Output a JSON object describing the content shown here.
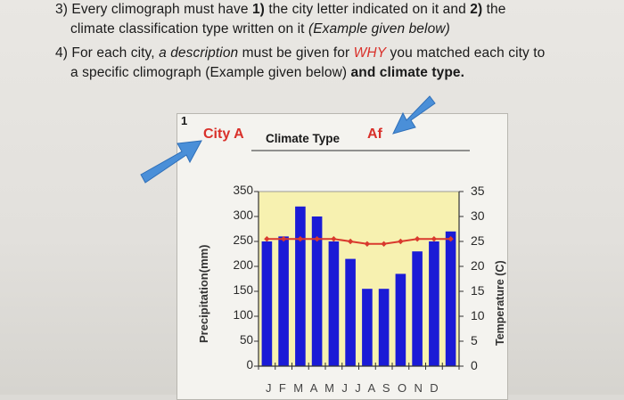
{
  "instructions": {
    "item3_prefix": "3) Every climograph must have ",
    "item3_bold1": "1)",
    "item3_mid1": " the city letter indicated on it and ",
    "item3_bold2": "2)",
    "item3_mid2": " the",
    "item3_line2_plain": "climate classification type written on it ",
    "item3_line2_italic": "(Example given below)",
    "item4_prefix": "4) For each city, ",
    "item4_italic": "a description",
    "item4_mid": " must be given for ",
    "item4_why": "WHY",
    "item4_end": " you matched each city to",
    "item4_line2_plain": "a specific climograph (Example given below) ",
    "item4_line2_bold": "and climate type."
  },
  "example": {
    "number": "1",
    "city": "City A",
    "climate_type_label": "Climate Type",
    "climate_type_value": "Af"
  },
  "colors": {
    "bar": "#1b1bd6",
    "temp_line": "#d93a2e",
    "plot_bg": "#f7f1b0",
    "arrow": "#4a8fd8",
    "accent_red": "#d9302a"
  },
  "chart_data": {
    "type": "bar",
    "ylabel": "Precipitation(mm)",
    "y2label": "Temperature (C)",
    "categories": [
      "J",
      "F",
      "M",
      "A",
      "M",
      "J",
      "J",
      "A",
      "S",
      "O",
      "N",
      "D"
    ],
    "x_tick_text": "J F M A M J J A S O N D",
    "ylim": [
      0,
      350
    ],
    "y_ticks": [
      "350",
      "300",
      "250",
      "200",
      "150",
      "100",
      "50",
      "0"
    ],
    "y2lim": [
      0,
      35
    ],
    "y2_ticks": [
      "35",
      "30",
      "25",
      "20",
      "15",
      "10",
      "5",
      "0"
    ],
    "series": [
      {
        "values": [
          250,
          260,
          320,
          300,
          250,
          215,
          155,
          155,
          185,
          230,
          250,
          270
        ]
      },
      {
        "values": [
          25.5,
          25.5,
          25.5,
          25.5,
          25.5,
          25,
          24.5,
          24.5,
          25,
          25.5,
          25.5,
          25.5
        ]
      }
    ]
  }
}
